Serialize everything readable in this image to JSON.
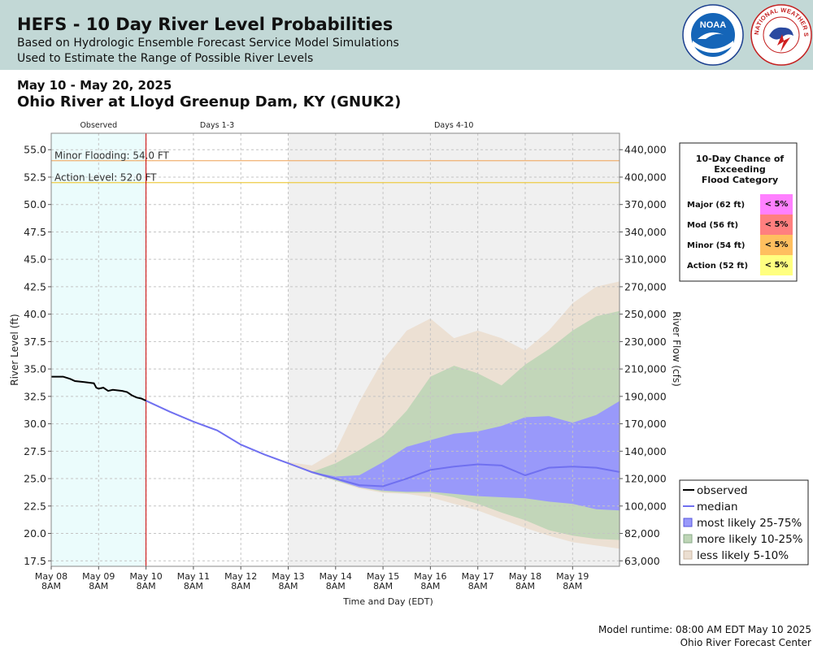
{
  "header": {
    "title": "HEFS - 10 Day River Level Probabilities",
    "subtitle1": "Based on Hydrologic Ensemble Forecast Service Model Simulations",
    "subtitle2": "Used to Estimate the Range of Possible River Levels",
    "noaa_logo_text": "NOAA",
    "nws_logo_text": "NATIONAL WEATHER SERVICE"
  },
  "date_range": "May 10 - May 20, 2025",
  "station": "Ohio River at Lloyd Greenup Dam, KY (GNUK2)",
  "footer": {
    "runtime": "Model runtime: 08:00 AM EDT May 10 2025",
    "center": "Ohio River Forecast Center"
  },
  "colors": {
    "observed_bg": "#ebfcfc",
    "days4_10_bg": "#f0f0f0",
    "observed_line": "#000000",
    "median_line": "#7070f0",
    "band_25_75": "#9999fa",
    "band_10_25": "#bed5b6",
    "band_5_10": "#ebded1",
    "minor_line": "#f0b070",
    "action_line": "#eecc44",
    "now_line": "#cc0000"
  },
  "chart_data": {
    "type": "area",
    "period_labels": [
      "Observed",
      "Days 1-3",
      "Days 4-10"
    ],
    "xlabel": "Time and Day (EDT)",
    "ylabel": "River Level (ft)",
    "ylabel_right": "River Flow (cfs)",
    "x_ticks": [
      {
        "date": "May 08",
        "time": "8AM"
      },
      {
        "date": "May 09",
        "time": "8AM"
      },
      {
        "date": "May 10",
        "time": "8AM"
      },
      {
        "date": "May 11",
        "time": "8AM"
      },
      {
        "date": "May 12",
        "time": "8AM"
      },
      {
        "date": "May 13",
        "time": "8AM"
      },
      {
        "date": "May 14",
        "time": "8AM"
      },
      {
        "date": "May 15",
        "time": "8AM"
      },
      {
        "date": "May 16",
        "time": "8AM"
      },
      {
        "date": "May 17",
        "time": "8AM"
      },
      {
        "date": "May 18",
        "time": "8AM"
      },
      {
        "date": "May 19",
        "time": "8AM"
      }
    ],
    "x_range_days": [
      "May 08 8AM",
      "May 20 8AM"
    ],
    "y_ticks": [
      "17.5",
      "20.0",
      "22.5",
      "25.0",
      "27.5",
      "30.0",
      "32.5",
      "35.0",
      "37.5",
      "40.0",
      "42.5",
      "45.0",
      "47.5",
      "50.0",
      "52.5",
      "55.0"
    ],
    "ylim": [
      17.0,
      56.5
    ],
    "y2_ticks": [
      {
        "stage": 17.5,
        "label": "63,000"
      },
      {
        "stage": 20.0,
        "label": "82,000"
      },
      {
        "stage": 22.5,
        "label": "100,000"
      },
      {
        "stage": 25.0,
        "label": "120,000"
      },
      {
        "stage": 27.5,
        "label": "140,000"
      },
      {
        "stage": 30.0,
        "label": "170,000"
      },
      {
        "stage": 32.5,
        "label": "190,000"
      },
      {
        "stage": 35.0,
        "label": "210,000"
      },
      {
        "stage": 37.5,
        "label": "230,000"
      },
      {
        "stage": 40.0,
        "label": "250,000"
      },
      {
        "stage": 42.5,
        "label": "270,000"
      },
      {
        "stage": 45.0,
        "label": "310,000"
      },
      {
        "stage": 47.5,
        "label": "340,000"
      },
      {
        "stage": 50.0,
        "label": "370,000"
      },
      {
        "stage": 52.5,
        "label": "400,000"
      },
      {
        "stage": 55.0,
        "label": "440,000"
      }
    ],
    "thresholds": [
      {
        "name": "Minor Flooding",
        "label": "Minor Flooding: 54.0 FT",
        "value": 54.0
      },
      {
        "name": "Action Level",
        "label": "Action Level: 52.0 FT",
        "value": 52.0
      }
    ],
    "observed": {
      "name": "observed",
      "x_days": [
        0,
        0.25,
        0.4,
        0.5,
        0.7,
        0.9,
        0.95,
        1.0,
        1.1,
        1.2,
        1.3,
        1.5,
        1.6,
        1.7,
        1.8,
        1.9,
        2.0
      ],
      "y": [
        34.3,
        34.3,
        34.1,
        33.9,
        33.8,
        33.7,
        33.3,
        33.2,
        33.3,
        33.0,
        33.1,
        33.0,
        32.9,
        32.6,
        32.4,
        32.3,
        32.1
      ]
    },
    "forecast_x_days": [
      2.0,
      2.5,
      3.0,
      3.5,
      4.0,
      4.5,
      5.0,
      5.5,
      6.0,
      6.5,
      7.0,
      7.5,
      8.0,
      8.5,
      9.0,
      9.5,
      10.0,
      10.5,
      11.0,
      11.5,
      12.0
    ],
    "median": {
      "name": "median",
      "y": [
        32.1,
        31.1,
        30.2,
        29.4,
        28.1,
        27.2,
        26.4,
        25.6,
        25.0,
        24.4,
        24.3,
        25.0,
        25.8,
        26.1,
        26.3,
        26.2,
        25.3,
        26.0,
        26.1,
        26.0,
        25.6
      ]
    },
    "bands": [
      {
        "name": "less likely 5-10%",
        "low": [
          32.1,
          31.1,
          30.2,
          29.4,
          28.1,
          27.2,
          26.4,
          25.5,
          24.8,
          24.1,
          23.7,
          23.6,
          23.3,
          22.7,
          22.1,
          21.3,
          20.5,
          19.8,
          19.2,
          18.9,
          18.6
        ],
        "high": [
          32.1,
          31.1,
          30.2,
          29.4,
          28.1,
          27.2,
          26.5,
          26.2,
          27.5,
          32.0,
          35.8,
          38.5,
          39.6,
          37.8,
          38.5,
          37.8,
          36.7,
          38.5,
          41.0,
          42.5,
          43.0
        ]
      },
      {
        "name": "more likely 10-25%",
        "low": [
          32.1,
          31.1,
          30.2,
          29.4,
          28.1,
          27.2,
          26.4,
          25.5,
          24.8,
          24.2,
          23.8,
          23.7,
          23.7,
          23.3,
          22.7,
          21.9,
          21.2,
          20.3,
          19.8,
          19.5,
          19.4
        ],
        "high": [
          32.1,
          31.1,
          30.2,
          29.4,
          28.1,
          27.2,
          26.4,
          25.6,
          26.4,
          27.6,
          28.9,
          31.2,
          34.3,
          35.3,
          34.6,
          33.5,
          35.4,
          36.8,
          38.5,
          39.8,
          40.3
        ]
      },
      {
        "name": "most likely 25-75%",
        "low": [
          32.1,
          31.1,
          30.2,
          29.4,
          28.1,
          27.2,
          26.4,
          25.5,
          24.9,
          24.2,
          23.9,
          23.8,
          23.8,
          23.6,
          23.4,
          23.3,
          23.2,
          22.9,
          22.7,
          22.2,
          22.1
        ],
        "high": [
          32.1,
          31.1,
          30.2,
          29.4,
          28.1,
          27.2,
          26.4,
          25.6,
          25.2,
          25.3,
          26.5,
          27.9,
          28.5,
          29.1,
          29.3,
          29.8,
          30.6,
          30.7,
          30.1,
          30.8,
          32.1
        ]
      }
    ],
    "legend": {
      "position": "bottom-right",
      "items": [
        {
          "label": "observed",
          "kind": "line",
          "color": "#000000"
        },
        {
          "label": "median",
          "kind": "line",
          "color": "#7070f0"
        },
        {
          "label": "most likely 25-75%",
          "kind": "box",
          "color": "#9999fa",
          "edge": "#5555dd"
        },
        {
          "label": "more likely 10-25%",
          "kind": "box",
          "color": "#bed5b6",
          "edge": "#88aa88"
        },
        {
          "label": "less likely 5-10%",
          "kind": "box",
          "color": "#ebded1",
          "edge": "#ccb8a4"
        }
      ]
    },
    "flood_table": {
      "title_lines": [
        "10-Day Chance of",
        "Exceeding",
        "Flood Category"
      ],
      "rows": [
        {
          "category": "Major (62 ft)",
          "chance": "< 5%",
          "color": "#ff80ff"
        },
        {
          "category": "Mod (56 ft)",
          "chance": "< 5%",
          "color": "#ff7f7f"
        },
        {
          "category": "Minor (54 ft)",
          "chance": "< 5%",
          "color": "#ffbf5f"
        },
        {
          "category": "Action (52 ft)",
          "chance": "< 5%",
          "color": "#ffff80"
        }
      ]
    }
  }
}
